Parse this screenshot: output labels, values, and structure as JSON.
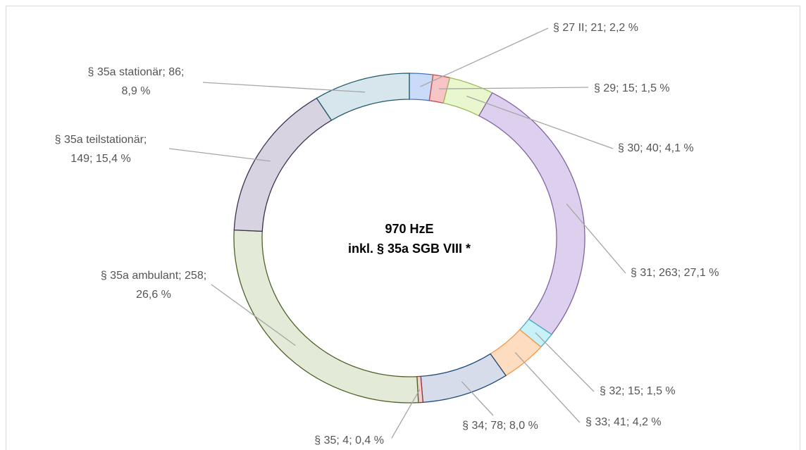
{
  "chart_data": {
    "type": "donut",
    "center_text": [
      "970 HzE",
      "inkl. § 35a SGB VIII *"
    ],
    "values": [
      21,
      15,
      40,
      263,
      15,
      41,
      78,
      4,
      258,
      149,
      86
    ],
    "value_labels": [
      [
        "§ 27 II; 21; 2,2 %"
      ],
      [
        "§ 29; 15; 1,5 %"
      ],
      [
        "§ 30; 40; 4,1 %"
      ],
      [
        "§ 31; 263; 27,1 %"
      ],
      [
        "§ 32; 15; 1,5 %"
      ],
      [
        "§ 33; 41; 4,2 %"
      ],
      [
        "§ 34; 78; 8,0 %"
      ],
      [
        "§ 35; 4; 0,4 %"
      ],
      [
        "§ 35a ambulant; 258;",
        "26,6 %"
      ],
      [
        "§ 35a teilstationär;",
        "149; 15,4 %"
      ],
      [
        "§ 35a stationär; 86;",
        "8,9 %"
      ]
    ],
    "colors": [
      "#c9dbf8",
      "#f7c5c5",
      "#e9f7cf",
      "#ddd0ee",
      "#c9f1f8",
      "#fddcbf",
      "#d7dcea",
      "#f3d0d0",
      "#e3ead7",
      "#d8d3e0",
      "#d6e6ec"
    ],
    "stroke_colors": [
      "#4472c4",
      "#c0504d",
      "#9bbb59",
      "#8064a2",
      "#4bacc6",
      "#f79646",
      "#1f497d",
      "#953735",
      "#4f6228",
      "#3f3151",
      "#215967"
    ]
  }
}
